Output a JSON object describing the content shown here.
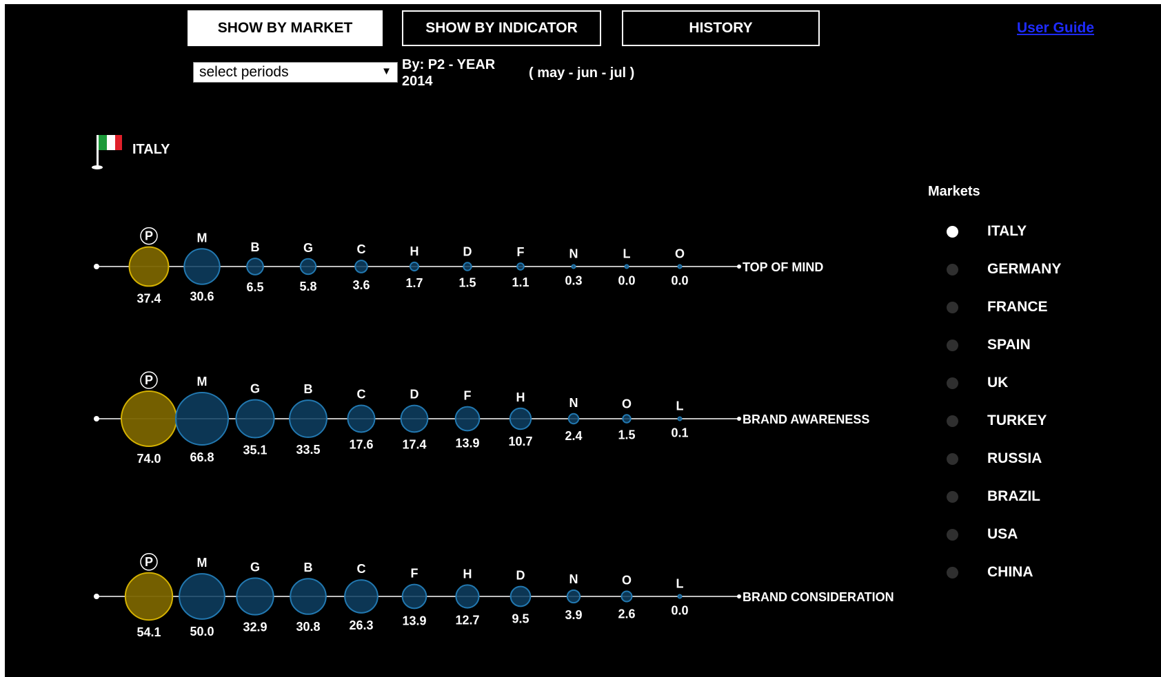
{
  "tabs": [
    {
      "label": "SHOW BY MARKET",
      "active": true
    },
    {
      "label": "SHOW BY INDICATOR",
      "active": false
    },
    {
      "label": "HISTORY",
      "active": false
    }
  ],
  "user_guide_label": "User Guide",
  "period_select": {
    "value": "select periods"
  },
  "by_label": "By: P2 - YEAR 2014",
  "months_label": "( may - jun - jul )",
  "market_title": "ITALY",
  "legend": {
    "title": "Markets",
    "items": [
      {
        "label": "ITALY",
        "selected": true
      },
      {
        "label": "GERMANY",
        "selected": false
      },
      {
        "label": "FRANCE",
        "selected": false
      },
      {
        "label": "SPAIN",
        "selected": false
      },
      {
        "label": "UK",
        "selected": false
      },
      {
        "label": "TURKEY",
        "selected": false
      },
      {
        "label": "RUSSIA",
        "selected": false
      },
      {
        "label": "BRAZIL",
        "selected": false
      },
      {
        "label": "USA",
        "selected": false
      },
      {
        "label": "CHINA",
        "selected": false
      }
    ]
  },
  "colors": {
    "highlight_fill": "#7a6400",
    "highlight_stroke": "#d4b100",
    "bubble_fill": "#0e3f63",
    "bubble_stroke": "#2278b0",
    "axis_line": "#ffffff"
  },
  "chart_data": {
    "type": "bubble",
    "highlight_brand": "P",
    "rows": [
      {
        "indicator": "TOP OF MIND",
        "brands": [
          "P",
          "M",
          "B",
          "G",
          "C",
          "H",
          "D",
          "F",
          "N",
          "L",
          "O"
        ],
        "values": [
          37.4,
          30.6,
          6.5,
          5.8,
          3.6,
          1.7,
          1.5,
          1.1,
          0.3,
          0.0,
          0.0
        ],
        "value_labels": [
          "37.4",
          "30.6",
          "6.5",
          "5.8",
          "3.6",
          "1.7",
          "1.5",
          "1.1",
          "0.3",
          "0.0",
          "0.0"
        ]
      },
      {
        "indicator": "BRAND AWARENESS",
        "brands": [
          "P",
          "M",
          "G",
          "B",
          "C",
          "D",
          "F",
          "H",
          "N",
          "O",
          "L"
        ],
        "values": [
          74.0,
          66.8,
          35.1,
          33.5,
          17.6,
          17.4,
          13.9,
          10.7,
          2.4,
          1.5,
          0.1
        ],
        "value_labels": [
          "74.0",
          "66.8",
          "35.1",
          "33.5",
          "17.6",
          "17.4",
          "13.9",
          "10.7",
          "2.4",
          "1.5",
          "0.1"
        ]
      },
      {
        "indicator": "BRAND CONSIDERATION",
        "brands": [
          "P",
          "M",
          "G",
          "B",
          "C",
          "F",
          "H",
          "D",
          "N",
          "O",
          "L"
        ],
        "values": [
          54.1,
          50.0,
          32.9,
          30.8,
          26.3,
          13.9,
          12.7,
          9.5,
          3.9,
          2.6,
          0.0
        ],
        "value_labels": [
          "54.1",
          "50.0",
          "32.9",
          "30.8",
          "26.3",
          "13.9",
          "12.7",
          "9.5",
          "3.9",
          "2.6",
          "0.0"
        ]
      }
    ]
  }
}
